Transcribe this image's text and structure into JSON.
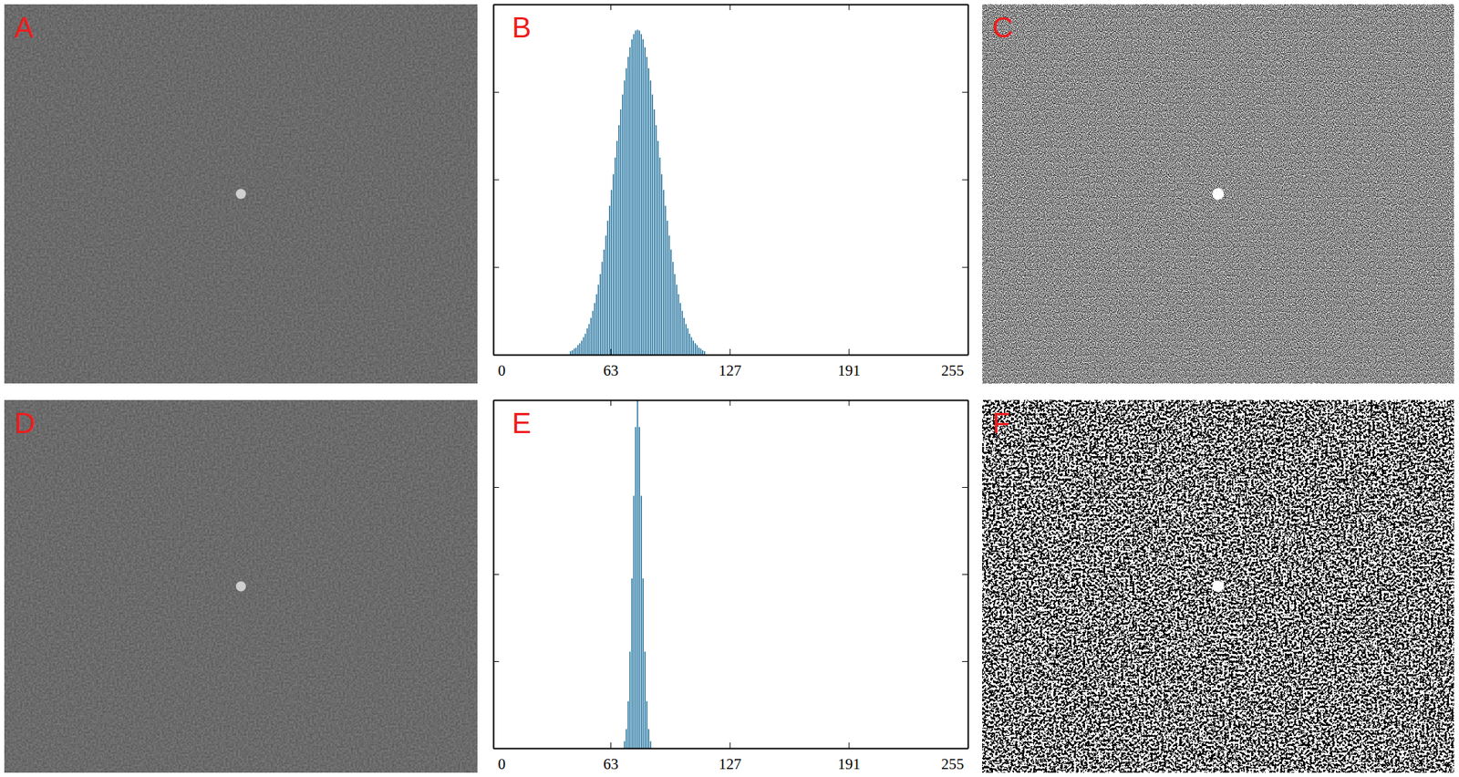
{
  "panel_labels": [
    "A",
    "B",
    "C",
    "D",
    "E",
    "F"
  ],
  "chart_data": [
    {
      "type": "histogram",
      "bins": [
        41,
        42,
        43,
        44,
        45,
        46,
        47,
        48,
        49,
        50,
        51,
        52,
        53,
        54,
        55,
        56,
        57,
        58,
        59,
        60,
        61,
        62,
        63,
        64,
        65,
        66,
        67,
        68,
        69,
        70,
        71,
        72,
        73,
        74,
        75,
        76,
        77,
        78,
        79,
        80,
        81,
        82,
        83,
        84,
        85,
        86,
        87,
        88,
        89,
        90,
        91,
        92,
        93,
        94,
        95,
        96,
        97,
        98,
        99,
        100,
        101,
        102,
        103,
        104,
        105,
        106,
        107,
        108,
        109,
        110,
        111,
        112,
        113,
        114
      ],
      "values": [
        0.04,
        0.05,
        0.07,
        0.08,
        0.11,
        0.13,
        0.16,
        0.2,
        0.24,
        0.3,
        0.35,
        0.42,
        0.5,
        0.59,
        0.69,
        0.8,
        0.92,
        1.06,
        1.2,
        1.36,
        1.53,
        1.7,
        1.88,
        2.06,
        2.25,
        2.44,
        2.62,
        2.8,
        2.97,
        3.13,
        3.27,
        3.4,
        3.51,
        3.6,
        3.66,
        3.7,
        3.71,
        3.7,
        3.66,
        3.6,
        3.51,
        3.4,
        3.27,
        3.13,
        2.97,
        2.8,
        2.62,
        2.44,
        2.25,
        2.06,
        1.88,
        1.7,
        1.53,
        1.36,
        1.2,
        1.06,
        0.92,
        0.8,
        0.69,
        0.59,
        0.5,
        0.42,
        0.35,
        0.3,
        0.24,
        0.2,
        0.16,
        0.13,
        0.11,
        0.08,
        0.07,
        0.05,
        0.04
      ],
      "color": "#1b6f9c",
      "xlim": [
        0,
        255
      ],
      "xticks": [
        0,
        63,
        127,
        191,
        255
      ],
      "ylim": [
        0,
        4
      ],
      "yticks": [
        0,
        1,
        2,
        3,
        4
      ],
      "tick_labels": "x"
    },
    {
      "type": "histogram",
      "bins": [
        70,
        71,
        72,
        73,
        74,
        75,
        76,
        77,
        78,
        79,
        80,
        81,
        82,
        83,
        84,
        85
      ],
      "values": [
        0.08,
        0.22,
        0.54,
        1.11,
        1.95,
        2.9,
        3.69,
        4,
        3.69,
        2.9,
        1.95,
        1.11,
        0.54,
        0.22,
        0.08
      ],
      "color": "#1b6f9c",
      "xlim": [
        0,
        255
      ],
      "xticks": [
        0,
        63,
        127,
        191,
        255
      ],
      "ylim": [
        0,
        4
      ],
      "yticks": [
        0,
        1,
        2,
        3,
        4
      ],
      "tick_labels": "x"
    }
  ]
}
